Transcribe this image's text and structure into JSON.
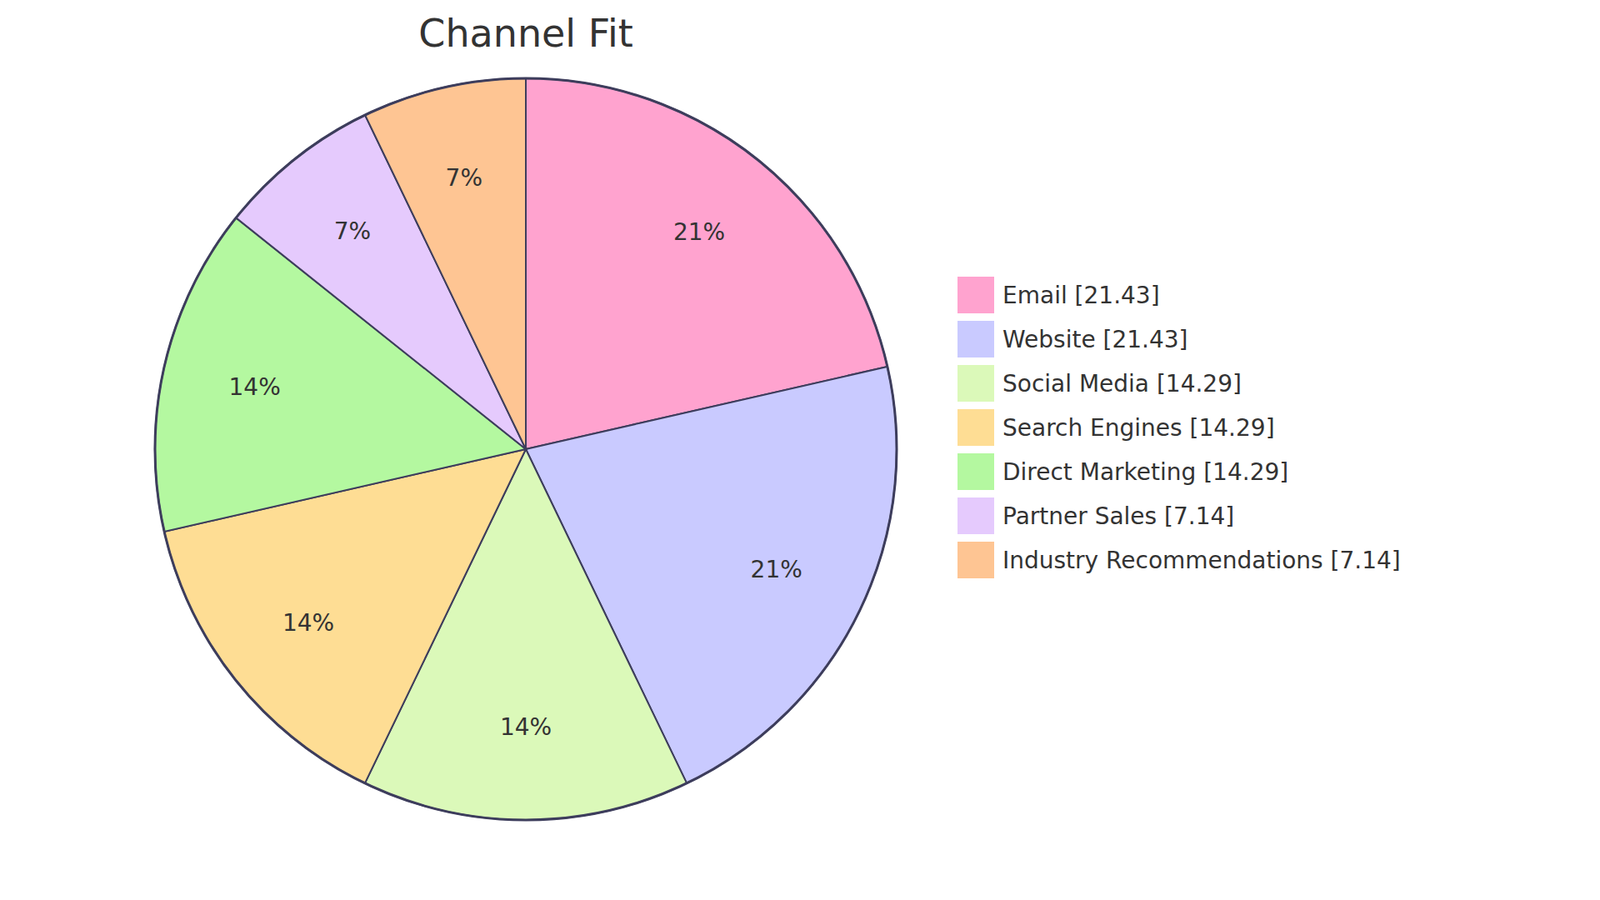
{
  "chart_data": {
    "type": "pie",
    "title": "Channel Fit",
    "categories": [
      "Email",
      "Website",
      "Social Media",
      "Search Engines",
      "Direct Marketing",
      "Partner Sales",
      "Industry Recommendations"
    ],
    "values": [
      21.43,
      21.43,
      14.29,
      14.29,
      14.29,
      7.14,
      7.14
    ],
    "value_labels": [
      "21%",
      "21%",
      "14%",
      "14%",
      "14%",
      "7%",
      "7%"
    ],
    "legend_labels": [
      "Email [21.43]",
      "Website [21.43]",
      "Social Media [14.29]",
      "Search Engines [14.29]",
      "Direct Marketing [14.29]",
      "Partner Sales [7.14]",
      "Industry Recommendations [7.14]"
    ],
    "colors": [
      "#ffa3cf",
      "#c9caff",
      "#dbf9b9",
      "#fedd94",
      "#b4f8a0",
      "#e5cafd",
      "#fec593"
    ],
    "data_labels": true,
    "legend": "right"
  }
}
